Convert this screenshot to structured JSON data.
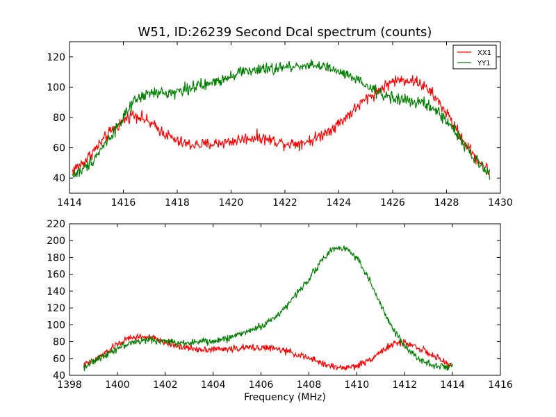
{
  "figure": {
    "title": "W51, ID:26239 Second Dcal spectrum (counts)",
    "xlabel": "Frequency (MHz)"
  },
  "chart_data": [
    {
      "type": "line",
      "title": "W51, ID:26239 Second Dcal spectrum (counts)",
      "xlabel": "",
      "ylabel": "",
      "xlim": [
        1414,
        1430
      ],
      "ylim": [
        30,
        130
      ],
      "xticks": [
        1414,
        1416,
        1418,
        1420,
        1422,
        1424,
        1426,
        1428,
        1430
      ],
      "yticks": [
        40,
        60,
        80,
        100,
        120
      ],
      "grid": false,
      "legend": {
        "position": "top-right",
        "entries": [
          "XX1",
          "YY1"
        ]
      },
      "series": [
        {
          "name": "XX1",
          "color": "#ff0000",
          "noise": 4,
          "x": [
            1414.1,
            1414.5,
            1415.0,
            1415.5,
            1416.0,
            1416.3,
            1416.6,
            1417.0,
            1417.5,
            1418.0,
            1418.5,
            1419.0,
            1419.5,
            1420.0,
            1420.5,
            1421.0,
            1421.5,
            1422.0,
            1422.5,
            1423.0,
            1423.5,
            1424.0,
            1424.5,
            1425.0,
            1425.5,
            1426.0,
            1426.5,
            1427.0,
            1427.5,
            1428.0,
            1428.5,
            1429.0,
            1429.6
          ],
          "y": [
            45,
            50,
            60,
            70,
            78,
            82,
            81,
            76,
            70,
            64,
            62,
            62,
            63,
            64,
            66,
            67,
            65,
            63,
            63,
            65,
            70,
            76,
            84,
            92,
            98,
            104,
            105,
            103,
            95,
            83,
            68,
            55,
            44
          ]
        },
        {
          "name": "YY1",
          "color": "#008000",
          "noise": 4,
          "x": [
            1414.1,
            1414.5,
            1415.0,
            1415.5,
            1416.0,
            1416.5,
            1417.0,
            1417.5,
            1418.0,
            1418.5,
            1419.0,
            1419.5,
            1420.0,
            1420.5,
            1421.0,
            1421.5,
            1422.0,
            1422.5,
            1423.0,
            1423.5,
            1424.0,
            1424.5,
            1425.0,
            1425.5,
            1426.0,
            1426.5,
            1427.0,
            1427.5,
            1428.0,
            1428.5,
            1429.0,
            1429.6
          ],
          "y": [
            42,
            45,
            55,
            67,
            80,
            92,
            96,
            96,
            97,
            100,
            101,
            104,
            108,
            111,
            111,
            112,
            113,
            114,
            115,
            113,
            110,
            106,
            101,
            96,
            93,
            91,
            90,
            86,
            78,
            67,
            53,
            42
          ]
        }
      ]
    },
    {
      "type": "line",
      "title": "",
      "xlabel": "Frequency (MHz)",
      "ylabel": "",
      "xlim": [
        1398,
        1416
      ],
      "ylim": [
        40,
        220
      ],
      "xticks": [
        1398,
        1400,
        1402,
        1404,
        1406,
        1408,
        1410,
        1412,
        1414,
        1416
      ],
      "yticks": [
        40,
        60,
        80,
        100,
        120,
        140,
        160,
        180,
        200,
        220
      ],
      "grid": false,
      "series": [
        {
          "name": "XX1",
          "color": "#ff0000",
          "noise": 4,
          "x": [
            1398.6,
            1399.0,
            1399.5,
            1400.0,
            1400.5,
            1401.0,
            1401.5,
            1402.0,
            1402.5,
            1403.0,
            1403.5,
            1404.0,
            1404.5,
            1405.0,
            1405.5,
            1406.0,
            1406.5,
            1407.0,
            1407.5,
            1408.0,
            1408.5,
            1409.0,
            1409.5,
            1410.0,
            1410.5,
            1411.0,
            1411.5,
            1412.0,
            1412.5,
            1413.0,
            1413.5,
            1414.0
          ],
          "y": [
            52,
            57,
            66,
            77,
            84,
            86,
            84,
            79,
            75,
            72,
            71,
            71,
            71,
            72,
            73,
            73,
            72,
            69,
            65,
            60,
            55,
            50,
            49,
            51,
            58,
            68,
            77,
            79,
            74,
            66,
            58,
            51
          ]
        },
        {
          "name": "YY1",
          "color": "#008000",
          "noise": 4,
          "x": [
            1398.6,
            1399.0,
            1399.5,
            1400.0,
            1400.5,
            1401.0,
            1401.5,
            1402.0,
            1402.5,
            1403.0,
            1403.5,
            1404.0,
            1404.5,
            1405.0,
            1405.5,
            1406.0,
            1406.5,
            1407.0,
            1407.5,
            1408.0,
            1408.5,
            1409.0,
            1409.5,
            1410.0,
            1410.5,
            1411.0,
            1411.5,
            1412.0,
            1412.5,
            1413.0,
            1413.5,
            1414.0
          ],
          "y": [
            50,
            56,
            65,
            72,
            78,
            81,
            82,
            80,
            79,
            79,
            80,
            80,
            83,
            88,
            93,
            98,
            107,
            120,
            137,
            155,
            175,
            190,
            192,
            180,
            155,
            123,
            95,
            75,
            62,
            54,
            50,
            50
          ]
        }
      ]
    }
  ]
}
